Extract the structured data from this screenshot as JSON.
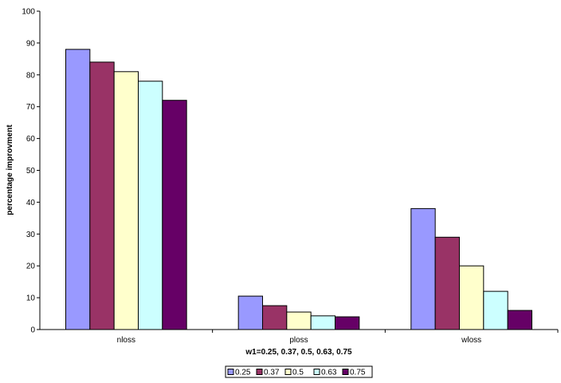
{
  "chart_data": {
    "type": "bar",
    "categories": [
      "nloss",
      "ploss",
      "wloss"
    ],
    "series": [
      {
        "name": "0.25",
        "color": "#9999ff",
        "values": [
          88,
          10.5,
          38
        ]
      },
      {
        "name": "0.37",
        "color": "#993366",
        "values": [
          84,
          7.5,
          29
        ]
      },
      {
        "name": "0.5",
        "color": "#ffffcc",
        "values": [
          81,
          5.5,
          20
        ]
      },
      {
        "name": "0.63",
        "color": "#ccffff",
        "values": [
          78,
          4.3,
          12
        ]
      },
      {
        "name": "0.75",
        "color": "#660066",
        "values": [
          72,
          4,
          6
        ]
      }
    ],
    "xlabel": "w1=0.25, 0.37, 0.5, 0.63, 0.75",
    "ylabel": "percentage improvment",
    "ylim": [
      0,
      100
    ],
    "yticks": [
      "0",
      "10",
      "20",
      "30",
      "40",
      "50",
      "60",
      "70",
      "80",
      "90",
      "100"
    ],
    "grid": false,
    "legend": "bottom"
  }
}
